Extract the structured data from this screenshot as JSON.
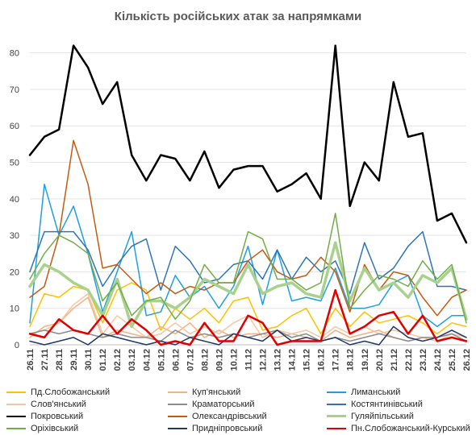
{
  "chart_data": {
    "type": "line",
    "title": "Кількість російських атак за напрямками",
    "xlabel": "",
    "ylabel": "",
    "ylim": [
      0,
      85
    ],
    "yticks": [
      0,
      10,
      20,
      30,
      40,
      50,
      60,
      70,
      80
    ],
    "grid": "horizontal",
    "legend_position": "bottom",
    "x": [
      "26.11",
      "27.11",
      "28.11",
      "29.11",
      "30.11",
      "01.12",
      "02.12",
      "03.12",
      "04.12",
      "05.12",
      "06.12",
      "07.12",
      "08.12",
      "09.12",
      "10.12",
      "11.12",
      "12.12",
      "13.12",
      "14.12",
      "15.12",
      "16.12",
      "17.12",
      "18.12",
      "19.12",
      "20.12",
      "21.12",
      "22.12",
      "23.12",
      "24.12",
      "25.12",
      "26.12"
    ],
    "series": [
      {
        "name": "Пд.Слобожанський",
        "color": "#ffc000",
        "width": 1.5,
        "values": [
          5,
          14,
          13,
          16,
          15,
          6,
          15,
          17,
          15,
          4,
          10,
          7,
          10,
          6,
          12,
          13,
          4,
          5,
          8,
          10,
          3,
          10,
          5,
          9,
          6,
          7,
          8,
          6,
          3,
          6,
          5
        ]
      },
      {
        "name": "Куп'янський",
        "color": "#f4b183",
        "width": 1.5,
        "values": [
          2,
          5,
          6,
          10,
          13,
          2,
          4,
          3,
          2,
          5,
          3,
          6,
          2,
          4,
          2,
          3,
          3,
          2,
          3,
          2,
          1,
          4,
          2,
          3,
          4,
          2,
          1,
          2,
          1,
          2,
          1
        ]
      },
      {
        "name": "Лиманський",
        "color": "#1f9fe0",
        "width": 1.5,
        "values": [
          6,
          44,
          30,
          38,
          25,
          9,
          20,
          31,
          8,
          9,
          19,
          13,
          16,
          10,
          16,
          27,
          11,
          26,
          12,
          13,
          12,
          21,
          10,
          10,
          11,
          17,
          19,
          8,
          5,
          8,
          8
        ]
      },
      {
        "name": "Слов'янський",
        "color": "#f7c6a0",
        "width": 1.5,
        "values": [
          3,
          4,
          6,
          11,
          14,
          3,
          8,
          5,
          2,
          3,
          6,
          3,
          5,
          3,
          6,
          8,
          2,
          4,
          3,
          4,
          2,
          5,
          3,
          5,
          3,
          4,
          3,
          2,
          1,
          3,
          2
        ]
      },
      {
        "name": "Краматорський",
        "color": "#8c8c8c",
        "width": 1.5,
        "values": [
          3,
          4,
          3,
          4,
          3,
          2,
          3,
          2,
          2,
          1,
          4,
          2,
          3,
          2,
          3,
          2,
          3,
          4,
          2,
          3,
          1,
          2,
          1,
          2,
          3,
          2,
          1,
          2,
          2,
          3,
          1
        ]
      },
      {
        "name": "Костянтинівський",
        "color": "#2e75b6",
        "width": 1.5,
        "values": [
          20,
          31,
          31,
          31,
          26,
          16,
          22,
          27,
          29,
          15,
          27,
          23,
          17,
          18,
          22,
          23,
          18,
          26,
          18,
          24,
          20,
          23,
          14,
          28,
          18,
          21,
          27,
          31,
          16,
          16,
          15
        ]
      },
      {
        "name": "Покровський",
        "color": "#000000",
        "width": 2.5,
        "values": [
          52,
          57,
          59,
          82,
          76,
          66,
          72,
          52,
          45,
          52,
          51,
          45,
          53,
          43,
          48,
          49,
          49,
          42,
          44,
          47,
          40,
          82,
          38,
          50,
          45,
          72,
          57,
          58,
          34,
          36,
          28
        ]
      },
      {
        "name": "Олександрівський",
        "color": "#c55a11",
        "width": 1.5,
        "values": [
          13,
          16,
          30,
          56,
          44,
          21,
          22,
          18,
          14,
          17,
          14,
          16,
          15,
          17,
          17,
          23,
          26,
          20,
          18,
          19,
          24,
          20,
          9,
          22,
          15,
          20,
          19,
          13,
          8,
          13,
          15
        ]
      },
      {
        "name": "Гуляйпільський",
        "color": "#a9d18e",
        "width": 3.5,
        "values": [
          16,
          22,
          20,
          17,
          15,
          8,
          18,
          5,
          12,
          12,
          10,
          13,
          18,
          16,
          14,
          22,
          14,
          16,
          17,
          14,
          13,
          28,
          12,
          21,
          15,
          17,
          13,
          19,
          17,
          21,
          7
        ]
      },
      {
        "name": "Оріхівський",
        "color": "#70ad47",
        "width": 1.5,
        "values": [
          18,
          25,
          30,
          28,
          25,
          12,
          17,
          8,
          12,
          13,
          7,
          12,
          22,
          17,
          17,
          31,
          29,
          18,
          18,
          15,
          17,
          36,
          10,
          15,
          19,
          18,
          16,
          23,
          18,
          22,
          6
        ]
      },
      {
        "name": "Придніпровський",
        "color": "#1f3864",
        "width": 1.5,
        "values": [
          1,
          0,
          1,
          2,
          0,
          3,
          2,
          1,
          0,
          1,
          0,
          2,
          1,
          0,
          3,
          2,
          1,
          4,
          1,
          2,
          1,
          2,
          0,
          1,
          0,
          5,
          2,
          1,
          2,
          4,
          2
        ]
      },
      {
        "name": "Пн.Слобожанський-Курський",
        "color": "#e00000",
        "width": 2.5,
        "values": [
          3,
          2,
          7,
          4,
          3,
          8,
          3,
          7,
          4,
          0,
          1,
          0,
          6,
          1,
          1,
          8,
          6,
          0,
          1,
          1,
          1,
          15,
          3,
          5,
          8,
          9,
          3,
          8,
          1,
          2,
          1
        ]
      }
    ]
  }
}
